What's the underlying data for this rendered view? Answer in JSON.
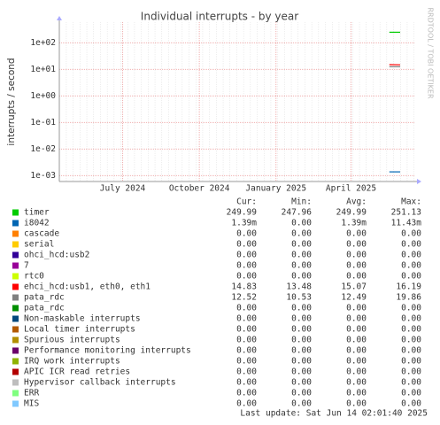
{
  "chart_data": {
    "type": "line",
    "title": "Individual interrupts - by year",
    "y_label": "interrupts / second",
    "side_label": "RRDTOOL / TOBI OETIKER",
    "log_scale": true,
    "grid": true,
    "ylim": [
      0.0006,
      600
    ],
    "yticks": [
      {
        "value": 100,
        "label": "1e+02"
      },
      {
        "value": 10,
        "label": "1e+01"
      },
      {
        "value": 1,
        "label": "1e+00"
      },
      {
        "value": 0.1,
        "label": "1e-01"
      },
      {
        "value": 0.01,
        "label": "1e-02"
      },
      {
        "value": 0.001,
        "label": "1e-03"
      }
    ],
    "xlim": [
      "2024-05",
      "2025-07"
    ],
    "xticks": [
      {
        "value": "2024-07-16",
        "label": "July 2024"
      },
      {
        "value": "2024-10-16",
        "label": "October 2024"
      },
      {
        "value": "2025-01-16",
        "label": "January 2025"
      },
      {
        "value": "2025-04-16",
        "label": "April 2025"
      }
    ],
    "x": [
      "2025-06",
      "2025-06-14"
    ],
    "legend_columns": [
      "Cur:",
      "Min:",
      "Avg:",
      "Max:"
    ],
    "series": [
      {
        "name": "timer",
        "color": "#00cc00",
        "stats": [
          "249.99",
          "247.96",
          "249.99",
          "251.13"
        ],
        "values": [
          249.99,
          249.99
        ]
      },
      {
        "name": "i8042",
        "color": "#0066b3",
        "stats": [
          "1.39m",
          "0.00",
          "1.39m",
          "11.43m"
        ],
        "values": [
          0.00139,
          0.00139
        ]
      },
      {
        "name": "cascade",
        "color": "#ff8000",
        "stats": [
          "0.00",
          "0.00",
          "0.00",
          "0.00"
        ]
      },
      {
        "name": "serial",
        "color": "#ffcc00",
        "stats": [
          "0.00",
          "0.00",
          "0.00",
          "0.00"
        ]
      },
      {
        "name": "ohci_hcd:usb2",
        "color": "#330099",
        "stats": [
          "0.00",
          "0.00",
          "0.00",
          "0.00"
        ]
      },
      {
        "name": "7",
        "color": "#990099",
        "stats": [
          "0.00",
          "0.00",
          "0.00",
          "0.00"
        ]
      },
      {
        "name": "rtc0",
        "color": "#ccff00",
        "stats": [
          "0.00",
          "0.00",
          "0.00",
          "0.00"
        ]
      },
      {
        "name": "ehci_hcd:usb1, eth0, eth1",
        "color": "#ff0000",
        "stats": [
          "14.83",
          "13.48",
          "15.07",
          "16.19"
        ],
        "values": [
          15.07,
          14.83
        ]
      },
      {
        "name": "pata_rdc",
        "color": "#808080",
        "stats": [
          "12.52",
          "10.53",
          "12.49",
          "19.86"
        ],
        "values": [
          12.49,
          12.52
        ]
      },
      {
        "name": "pata_rdc",
        "color": "#008f00",
        "stats": [
          "0.00",
          "0.00",
          "0.00",
          "0.00"
        ]
      },
      {
        "name": "Non-maskable interrupts",
        "color": "#00487d",
        "stats": [
          "0.00",
          "0.00",
          "0.00",
          "0.00"
        ]
      },
      {
        "name": "Local timer interrupts",
        "color": "#b35a00",
        "stats": [
          "0.00",
          "0.00",
          "0.00",
          "0.00"
        ]
      },
      {
        "name": "Spurious interrupts",
        "color": "#b38f00",
        "stats": [
          "0.00",
          "0.00",
          "0.00",
          "0.00"
        ]
      },
      {
        "name": "Performance monitoring interrupts",
        "color": "#6b006b",
        "stats": [
          "0.00",
          "0.00",
          "0.00",
          "0.00"
        ]
      },
      {
        "name": "IRQ work interrupts",
        "color": "#8fb300",
        "stats": [
          "0.00",
          "0.00",
          "0.00",
          "0.00"
        ]
      },
      {
        "name": "APIC ICR read retries",
        "color": "#b30000",
        "stats": [
          "0.00",
          "0.00",
          "0.00",
          "0.00"
        ]
      },
      {
        "name": "Hypervisor callback interrupts",
        "color": "#bebebe",
        "stats": [
          "0.00",
          "0.00",
          "0.00",
          "0.00"
        ]
      },
      {
        "name": "ERR",
        "color": "#80ff80",
        "stats": [
          "0.00",
          "0.00",
          "0.00",
          "0.00"
        ]
      },
      {
        "name": "MIS",
        "color": "#80c9ff",
        "stats": [
          "0.00",
          "0.00",
          "0.00",
          "0.00"
        ]
      }
    ],
    "last_update": "Last update: Sat Jun 14 02:01:40 2025"
  }
}
